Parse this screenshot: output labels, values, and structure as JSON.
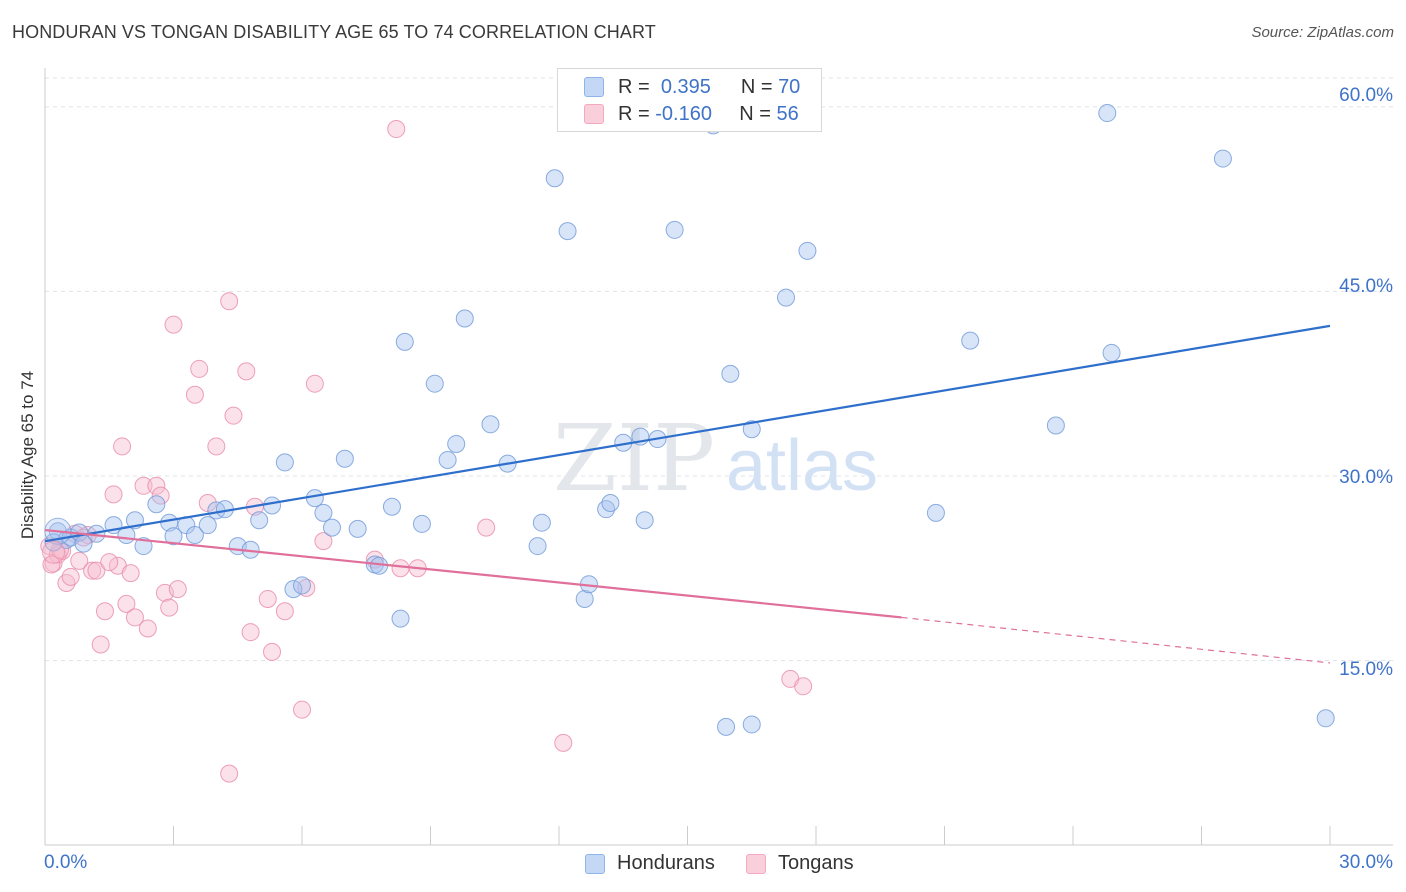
{
  "header": {
    "title": "HONDURAN VS TONGAN DISABILITY AGE 65 TO 74 CORRELATION CHART",
    "source": "Source: ZipAtlas.com"
  },
  "legend": {
    "rows": [
      {
        "r_label": "R =",
        "r_value": "0.395",
        "n_label": "N =",
        "n_value": "70",
        "color": "#8fb4ec"
      },
      {
        "r_label": "R =",
        "r_value": "-0.160",
        "n_label": "N =",
        "n_value": "56",
        "color": "#f4a9c1"
      }
    ]
  },
  "bottom_legend": [
    {
      "label": "Hondurans",
      "color": "#8fb4ec"
    },
    {
      "label": "Tongans",
      "color": "#f4a9c1"
    }
  ],
  "watermark": {
    "zip": "ZIP",
    "atlas": "atlas"
  },
  "colors": {
    "blue_fill": "#a9c4f0",
    "blue_stroke": "#6f9ad8",
    "blue_line": "#2f6fcc",
    "pink_fill": "#f7bccf",
    "pink_stroke": "#e98aaa",
    "pink_line": "#e0709a",
    "grid": "#dfe3ea",
    "axis_text": "#3f73c8"
  },
  "chart_data": {
    "type": "scatter",
    "title": "HONDURAN VS TONGAN DISABILITY AGE 65 TO 74 CORRELATION CHART",
    "xlabel": "",
    "ylabel": "Disability Age 65 to 74",
    "xlim": [
      0,
      30
    ],
    "ylim": [
      0,
      63
    ],
    "x_tick_labels": [
      "0.0%",
      "30.0%"
    ],
    "y_tick_labels": [
      "15.0%",
      "30.0%",
      "45.0%",
      "60.0%"
    ],
    "y_ticks": [
      15,
      30,
      45,
      60
    ],
    "x_minor_ticks": [
      0,
      3,
      6,
      9,
      12,
      15,
      18,
      21,
      24,
      27,
      30
    ],
    "grid": true,
    "legend_position": "top-center",
    "series": [
      {
        "name": "Hondurans",
        "r": 0.395,
        "n": 70,
        "trend": {
          "x0": 0,
          "y0": 24.7,
          "x1": 30,
          "y1": 42.2
        },
        "points": [
          [
            0.3,
            25.5
          ],
          [
            0.5,
            24.8
          ],
          [
            0.6,
            25.0
          ],
          [
            0.8,
            25.4
          ],
          [
            0.9,
            24.5
          ],
          [
            1.2,
            25.3
          ],
          [
            1.6,
            26.0
          ],
          [
            1.9,
            25.2
          ],
          [
            2.1,
            26.4
          ],
          [
            2.3,
            24.3
          ],
          [
            2.6,
            27.7
          ],
          [
            2.9,
            26.2
          ],
          [
            3.0,
            25.1
          ],
          [
            3.3,
            26.0
          ],
          [
            3.5,
            25.2
          ],
          [
            3.8,
            26.0
          ],
          [
            4.0,
            27.2
          ],
          [
            4.2,
            27.3
          ],
          [
            4.5,
            24.3
          ],
          [
            4.8,
            24.0
          ],
          [
            5.0,
            26.4
          ],
          [
            5.3,
            27.6
          ],
          [
            5.6,
            31.1
          ],
          [
            5.8,
            20.8
          ],
          [
            6.0,
            21.1
          ],
          [
            6.3,
            28.2
          ],
          [
            6.5,
            27.0
          ],
          [
            6.7,
            25.8
          ],
          [
            7.0,
            31.4
          ],
          [
            7.3,
            25.7
          ],
          [
            7.7,
            22.8
          ],
          [
            7.8,
            22.7
          ],
          [
            8.1,
            27.5
          ],
          [
            8.3,
            18.4
          ],
          [
            8.4,
            40.9
          ],
          [
            8.8,
            26.1
          ],
          [
            9.1,
            37.5
          ],
          [
            9.4,
            31.3
          ],
          [
            9.6,
            32.6
          ],
          [
            9.8,
            42.8
          ],
          [
            10.4,
            34.2
          ],
          [
            10.8,
            31.0
          ],
          [
            11.5,
            24.3
          ],
          [
            11.6,
            26.2
          ],
          [
            11.9,
            54.2
          ],
          [
            12.2,
            49.9
          ],
          [
            12.6,
            20.0
          ],
          [
            12.7,
            21.2
          ],
          [
            13.1,
            27.3
          ],
          [
            13.2,
            27.8
          ],
          [
            13.5,
            32.7
          ],
          [
            13.9,
            33.2
          ],
          [
            14.0,
            26.4
          ],
          [
            14.3,
            33.0
          ],
          [
            14.7,
            50.0
          ],
          [
            15.6,
            58.5
          ],
          [
            15.9,
            9.6
          ],
          [
            16.0,
            38.3
          ],
          [
            16.5,
            9.8
          ],
          [
            16.5,
            33.8
          ],
          [
            17.3,
            44.5
          ],
          [
            17.8,
            48.3
          ],
          [
            20.8,
            27.0
          ],
          [
            21.6,
            41.0
          ],
          [
            23.6,
            34.1
          ],
          [
            24.8,
            59.5
          ],
          [
            24.9,
            40.0
          ],
          [
            27.5,
            55.8
          ],
          [
            29.9,
            10.3
          ],
          [
            0.2,
            24.6
          ]
        ]
      },
      {
        "name": "Tongans",
        "r": -0.16,
        "n": 56,
        "trend": {
          "x0": 0,
          "y0": 25.6,
          "x1": 20.0,
          "y1": 18.5,
          "dashed_to_x": 30,
          "dashed_to_y": 14.8
        },
        "points": [
          [
            0.1,
            24.3
          ],
          [
            0.2,
            22.9
          ],
          [
            0.3,
            23.6
          ],
          [
            0.4,
            23.9
          ],
          [
            0.5,
            21.3
          ],
          [
            0.6,
            21.8
          ],
          [
            0.7,
            25.3
          ],
          [
            0.8,
            23.1
          ],
          [
            1.0,
            25.2
          ],
          [
            1.1,
            22.3
          ],
          [
            1.2,
            22.3
          ],
          [
            1.3,
            16.3
          ],
          [
            1.4,
            19.0
          ],
          [
            1.6,
            28.5
          ],
          [
            1.7,
            22.7
          ],
          [
            1.8,
            32.4
          ],
          [
            1.9,
            19.6
          ],
          [
            2.0,
            22.1
          ],
          [
            2.1,
            18.5
          ],
          [
            2.3,
            29.2
          ],
          [
            2.4,
            17.6
          ],
          [
            2.6,
            29.2
          ],
          [
            2.7,
            28.4
          ],
          [
            2.8,
            20.5
          ],
          [
            2.9,
            19.3
          ],
          [
            3.0,
            42.3
          ],
          [
            3.1,
            20.8
          ],
          [
            3.5,
            36.6
          ],
          [
            3.6,
            38.7
          ],
          [
            3.8,
            27.8
          ],
          [
            4.0,
            32.4
          ],
          [
            4.3,
            44.2
          ],
          [
            4.4,
            34.9
          ],
          [
            4.7,
            38.5
          ],
          [
            4.8,
            17.3
          ],
          [
            4.9,
            27.5
          ],
          [
            5.2,
            20.0
          ],
          [
            5.3,
            15.7
          ],
          [
            5.6,
            19.0
          ],
          [
            6.0,
            11.0
          ],
          [
            6.1,
            20.9
          ],
          [
            6.3,
            37.5
          ],
          [
            6.5,
            24.7
          ],
          [
            7.7,
            23.2
          ],
          [
            8.2,
            58.2
          ],
          [
            8.3,
            22.5
          ],
          [
            8.7,
            22.5
          ],
          [
            10.3,
            25.8
          ],
          [
            12.1,
            8.3
          ],
          [
            17.4,
            13.5
          ],
          [
            17.7,
            12.9
          ],
          [
            4.3,
            5.8
          ],
          [
            0.15,
            22.8
          ],
          [
            0.35,
            24.0
          ],
          [
            1.5,
            23.0
          ],
          [
            0.9,
            25.0
          ]
        ]
      }
    ]
  }
}
